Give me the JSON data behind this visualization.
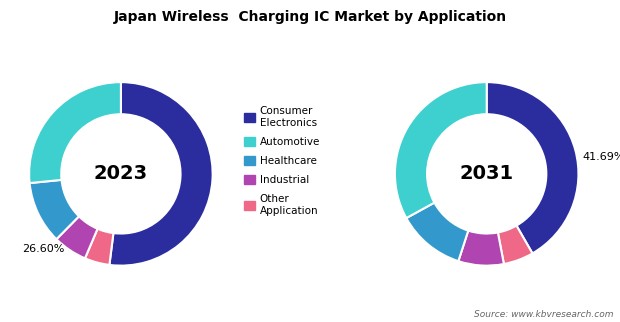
{
  "title": "Japan Wireless  Charging IC Market by Application",
  "source": "Source: www.kbvresearch.com",
  "colors": {
    "consumer_electronics": "#2b2d9e",
    "automotive": "#3ecfcf",
    "healthcare": "#3399cc",
    "industrial": "#b044b0",
    "other_application": "#f06888"
  },
  "chart_2023": {
    "year": "2023",
    "label_pct": "26.60%",
    "values": [
      52.0,
      4.4,
      6.0,
      11.0,
      26.6
    ]
  },
  "chart_2031": {
    "year": "2031",
    "label_pct": "41.69%",
    "values": [
      41.69,
      5.31,
      8.0,
      12.0,
      33.0
    ]
  },
  "legend_labels": [
    "Consumer\nElectronics",
    "Automotive",
    "Healthcare",
    "Industrial",
    "Other\nApplication"
  ],
  "legend_colors_order": [
    "consumer_electronics",
    "automotive",
    "healthcare",
    "industrial",
    "other_application"
  ],
  "background_color": "#ffffff"
}
